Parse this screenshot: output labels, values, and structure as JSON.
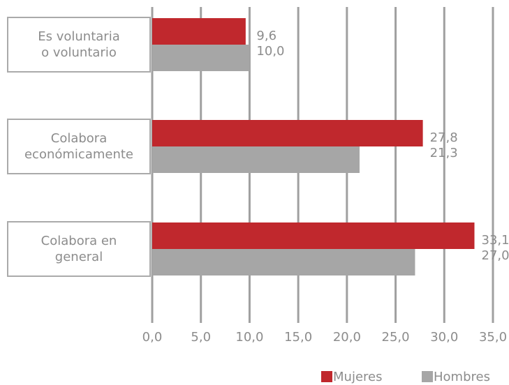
{
  "chart_data": {
    "type": "bar",
    "orientation": "horizontal",
    "categories": [
      "Es voluntaria\no voluntario",
      "Colabora\neconómicamente",
      "Colabora en\ngeneral"
    ],
    "series": [
      {
        "name": "Mujeres",
        "color": "#c0282d",
        "values": [
          9.6,
          27.8,
          33.1
        ],
        "value_labels": [
          "9,6",
          "27,8",
          "33,1"
        ]
      },
      {
        "name": "Hombres",
        "color": "#a6a6a6",
        "values": [
          10.0,
          21.3,
          27.0
        ],
        "value_labels": [
          "10,0",
          "21,3",
          "27,0"
        ]
      }
    ],
    "xlim": [
      0,
      35
    ],
    "xticks": [
      {
        "value": 0,
        "label": "0,0"
      },
      {
        "value": 5,
        "label": "5,0"
      },
      {
        "value": 10,
        "label": "10,0"
      },
      {
        "value": 15,
        "label": "15,0"
      },
      {
        "value": 20,
        "label": "20,0"
      },
      {
        "value": 25,
        "label": "25,0"
      },
      {
        "value": 30,
        "label": "30,0"
      },
      {
        "value": 35,
        "label": "35,0"
      }
    ],
    "grid": true,
    "legend": "bottom"
  }
}
